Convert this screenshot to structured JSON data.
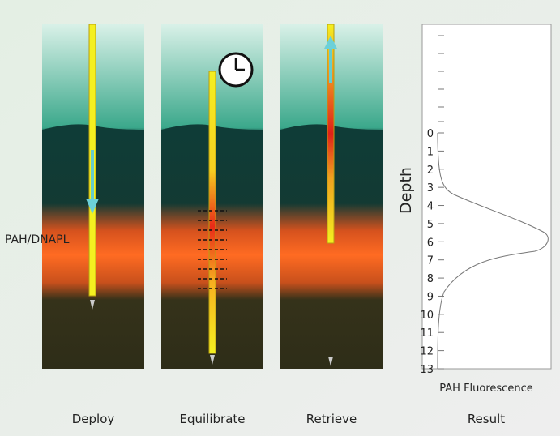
{
  "panels": [
    {
      "label": "Deploy"
    },
    {
      "label": "Equilibrate"
    },
    {
      "label": "Retrieve"
    },
    {
      "label": "Result"
    }
  ],
  "annotation": "PAH/DNAPL",
  "result": {
    "y_axis_label": "Depth",
    "x_axis_label": "PAH Fluorescence",
    "depth_ticks": [
      0,
      1,
      2,
      3,
      4,
      5,
      6,
      7,
      8,
      9,
      10,
      11,
      12,
      13
    ]
  }
}
